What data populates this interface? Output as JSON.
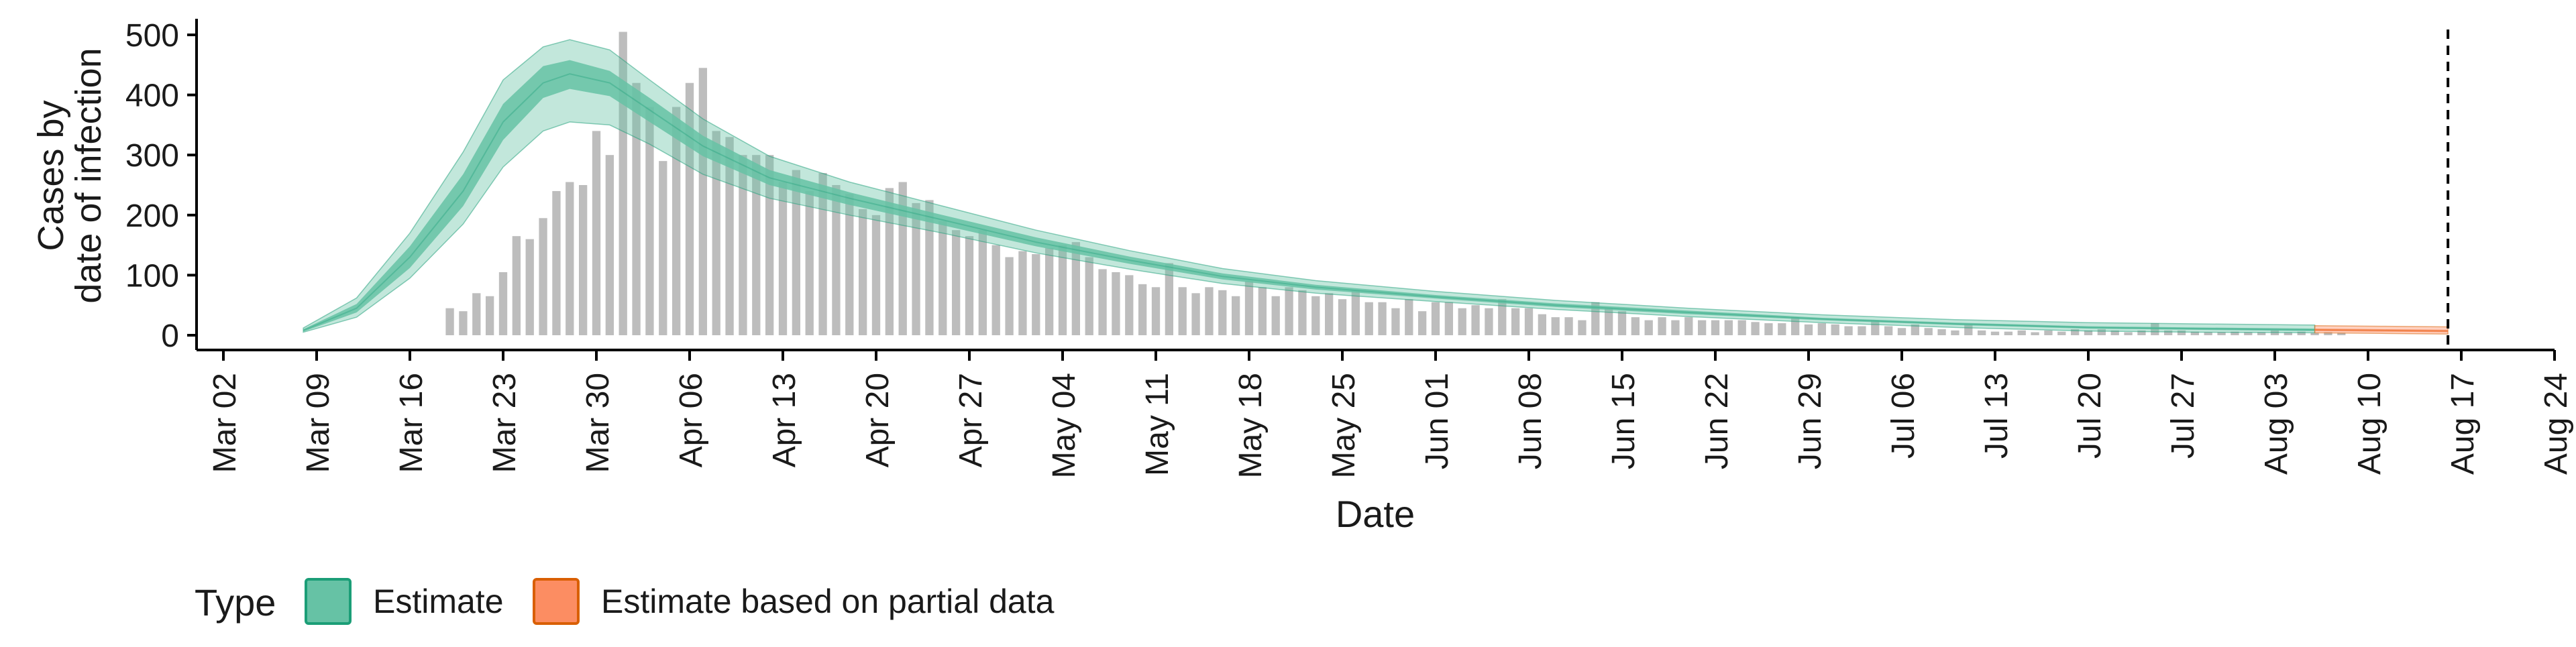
{
  "chart_data": {
    "type": "bar",
    "xlabel": "Date",
    "ylabel_lines": [
      "Cases by",
      "date of infection"
    ],
    "ylim": [
      0,
      520
    ],
    "yticks": [
      0,
      100,
      200,
      300,
      400,
      500
    ],
    "x_start": "2020-03-02",
    "x_end": "2020-08-24",
    "xticks": [
      "Mar 02",
      "Mar 09",
      "Mar 16",
      "Mar 23",
      "Mar 30",
      "Apr 06",
      "Apr 13",
      "Apr 20",
      "Apr 27",
      "May 04",
      "May 11",
      "May 18",
      "May 25",
      "Jun 01",
      "Jun 08",
      "Jun 15",
      "Jun 22",
      "Jun 29",
      "Jul 06",
      "Jul 13",
      "Jul 20",
      "Jul 27",
      "Aug 03",
      "Aug 10",
      "Aug 17",
      "Aug 24"
    ],
    "reference_line_date": "2020-08-16",
    "bars": {
      "start_date": "2020-03-19",
      "values": [
        45,
        40,
        70,
        65,
        105,
        165,
        160,
        195,
        240,
        255,
        250,
        340,
        300,
        505,
        420,
        380,
        290,
        380,
        420,
        445,
        340,
        330,
        300,
        300,
        300,
        255,
        275,
        240,
        270,
        250,
        235,
        210,
        200,
        245,
        255,
        220,
        225,
        190,
        175,
        165,
        175,
        150,
        130,
        140,
        135,
        145,
        150,
        155,
        130,
        110,
        105,
        100,
        85,
        80,
        120,
        80,
        70,
        80,
        75,
        65,
        90,
        80,
        65,
        80,
        75,
        65,
        70,
        60,
        75,
        55,
        55,
        45,
        60,
        40,
        55,
        55,
        45,
        50,
        45,
        60,
        45,
        45,
        35,
        30,
        30,
        25,
        55,
        45,
        40,
        30,
        25,
        30,
        25,
        30,
        25,
        25,
        25,
        25,
        22,
        20,
        20,
        30,
        18,
        20,
        18,
        15,
        15,
        25,
        15,
        12,
        18,
        12,
        10,
        8,
        18,
        8,
        6,
        6,
        8,
        5,
        8,
        6,
        10,
        8,
        10,
        8,
        5,
        8,
        20,
        8,
        8,
        6,
        5,
        5,
        6,
        5,
        5,
        8,
        5,
        6,
        4,
        5,
        4
      ]
    },
    "series": [
      {
        "name": "Estimate",
        "color": "#66c2a5",
        "stroke": "#1b9e77",
        "points": [
          {
            "date": "2020-03-08",
            "median": 8,
            "lo50": 6,
            "hi50": 10,
            "lo90": 5,
            "hi90": 12
          },
          {
            "date": "2020-03-12",
            "median": 45,
            "lo50": 38,
            "hi50": 52,
            "lo90": 30,
            "hi90": 62
          },
          {
            "date": "2020-03-16",
            "median": 130,
            "lo50": 112,
            "hi50": 148,
            "lo90": 95,
            "hi90": 170
          },
          {
            "date": "2020-03-20",
            "median": 240,
            "lo50": 215,
            "hi50": 268,
            "lo90": 185,
            "hi90": 305
          },
          {
            "date": "2020-03-23",
            "median": 355,
            "lo50": 325,
            "hi50": 385,
            "lo90": 280,
            "hi90": 425
          },
          {
            "date": "2020-03-26",
            "median": 420,
            "lo50": 395,
            "hi50": 448,
            "lo90": 340,
            "hi90": 480
          },
          {
            "date": "2020-03-28",
            "median": 435,
            "lo50": 410,
            "hi50": 458,
            "lo90": 355,
            "hi90": 492
          },
          {
            "date": "2020-03-31",
            "median": 420,
            "lo50": 398,
            "hi50": 440,
            "lo90": 350,
            "hi90": 475
          },
          {
            "date": "2020-04-03",
            "median": 375,
            "lo50": 355,
            "hi50": 395,
            "lo90": 318,
            "hi90": 425
          },
          {
            "date": "2020-04-07",
            "median": 315,
            "lo50": 298,
            "hi50": 332,
            "lo90": 268,
            "hi90": 360
          },
          {
            "date": "2020-04-12",
            "median": 262,
            "lo50": 250,
            "hi50": 275,
            "lo90": 228,
            "hi90": 298
          },
          {
            "date": "2020-04-18",
            "median": 228,
            "lo50": 217,
            "hi50": 238,
            "lo90": 200,
            "hi90": 255
          },
          {
            "date": "2020-04-25",
            "median": 192,
            "lo50": 183,
            "hi50": 200,
            "lo90": 170,
            "hi90": 215
          },
          {
            "date": "2020-05-02",
            "median": 155,
            "lo50": 148,
            "hi50": 163,
            "lo90": 137,
            "hi90": 175
          },
          {
            "date": "2020-05-09",
            "median": 125,
            "lo50": 119,
            "hi50": 131,
            "lo90": 110,
            "hi90": 141
          },
          {
            "date": "2020-05-16",
            "median": 98,
            "lo50": 93,
            "hi50": 103,
            "lo90": 86,
            "hi90": 111
          },
          {
            "date": "2020-05-23",
            "median": 80,
            "lo50": 76,
            "hi50": 84,
            "lo90": 70,
            "hi90": 91
          },
          {
            "date": "2020-06-01",
            "median": 64,
            "lo50": 61,
            "hi50": 67,
            "lo90": 56,
            "hi90": 73
          },
          {
            "date": "2020-06-10",
            "median": 50,
            "lo50": 47,
            "hi50": 53,
            "lo90": 43,
            "hi90": 58
          },
          {
            "date": "2020-06-20",
            "median": 38,
            "lo50": 35,
            "hi50": 41,
            "lo90": 31,
            "hi90": 45
          },
          {
            "date": "2020-06-30",
            "median": 27,
            "lo50": 25,
            "hi50": 29,
            "lo90": 21,
            "hi90": 34
          },
          {
            "date": "2020-07-10",
            "median": 19,
            "lo50": 17,
            "hi50": 21,
            "lo90": 13,
            "hi90": 26
          },
          {
            "date": "2020-07-20",
            "median": 13,
            "lo50": 11,
            "hi50": 15,
            "lo90": 7,
            "hi90": 21
          },
          {
            "date": "2020-07-28",
            "median": 11,
            "lo50": 9,
            "hi50": 13,
            "lo90": 5,
            "hi90": 19
          },
          {
            "date": "2020-08-06",
            "median": 9,
            "lo50": 7,
            "hi50": 11,
            "lo90": 4,
            "hi90": 17
          }
        ]
      },
      {
        "name": "Estimate based on partial data",
        "color": "#fc8d62",
        "stroke": "#d95f02",
        "points": [
          {
            "date": "2020-08-06",
            "median": 9,
            "lo50": 7,
            "hi50": 11,
            "lo90": 4,
            "hi90": 16
          },
          {
            "date": "2020-08-11",
            "median": 8,
            "lo50": 6,
            "hi50": 10,
            "lo90": 3,
            "hi90": 15
          },
          {
            "date": "2020-08-16",
            "median": 7,
            "lo50": 5,
            "hi50": 9,
            "lo90": 2,
            "hi90": 14
          }
        ]
      }
    ],
    "legend": {
      "title": "Type",
      "position": "bottom-left",
      "items": [
        {
          "label": "Estimate",
          "fill": "#66c2a5",
          "stroke": "#1b9e77"
        },
        {
          "label": "Estimate based on partial data",
          "fill": "#fc8d62",
          "stroke": "#d95f02"
        }
      ]
    },
    "colors": {
      "bars": "#bdbdbd",
      "axis": "#000000"
    }
  }
}
